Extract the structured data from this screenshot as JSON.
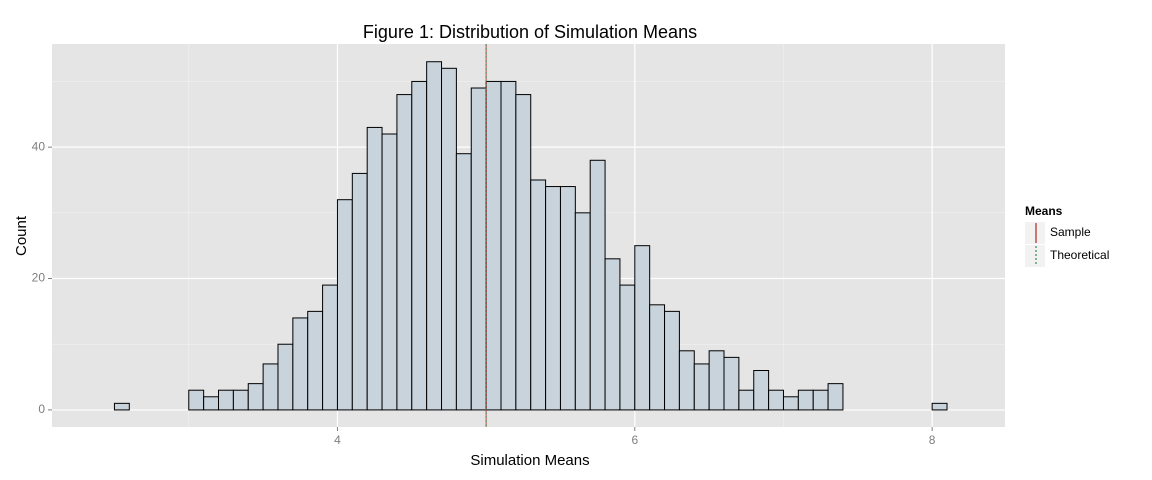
{
  "chart_data": {
    "type": "histogram",
    "title": "Figure 1: Distribution of Simulation Means",
    "x_label": "Simulation Means",
    "y_label": "Count",
    "bins": [
      2.4,
      2.5,
      2.6,
      2.7,
      2.8,
      2.9,
      3.0,
      3.1,
      3.2,
      3.3,
      3.4,
      3.5,
      3.6,
      3.7,
      3.8,
      3.9,
      4.0,
      4.1,
      4.2,
      4.3,
      4.4,
      4.5,
      4.6,
      4.7,
      4.8,
      4.9,
      5.0,
      5.1,
      5.2,
      5.3,
      5.4,
      5.5,
      5.6,
      5.7,
      5.8,
      5.9,
      6.0,
      6.1,
      6.2,
      6.3,
      6.4,
      6.5,
      6.6,
      6.7,
      6.8,
      6.9,
      7.0,
      7.1,
      7.2,
      7.3,
      7.4,
      7.5,
      7.6,
      7.7,
      7.8,
      7.9,
      8.0,
      8.1,
      8.2
    ],
    "values": [
      0,
      1,
      0,
      0,
      0,
      0,
      3,
      2,
      3,
      3,
      4,
      7,
      10,
      14,
      15,
      19,
      32,
      36,
      43,
      42,
      48,
      50,
      53,
      52,
      39,
      49,
      50,
      50,
      48,
      35,
      34,
      34,
      30,
      38,
      23,
      19,
      25,
      16,
      15,
      9,
      7,
      9,
      8,
      3,
      6,
      3,
      2,
      3,
      3,
      4,
      0,
      0,
      0,
      0,
      0,
      0,
      1,
      0
    ],
    "color": "#c8d3dc",
    "edge_color": "#000000",
    "xlim": [
      2.08,
      8.49
    ],
    "ylim": [
      -2.6,
      55.7
    ],
    "xticks": [
      4,
      6,
      8
    ],
    "yticks": [
      0,
      20,
      40
    ],
    "xminor": [
      3,
      5,
      7
    ],
    "yminor": [
      10,
      30,
      50
    ],
    "grid": true,
    "legend_title": "Means",
    "legend_position": "right",
    "vlines": [
      {
        "name": "Sample",
        "value": 5.0,
        "color": "#b22222",
        "dashed": false
      },
      {
        "name": "Theoretical",
        "value": 5,
        "color": "#2e8b57",
        "dashed": true
      }
    ]
  }
}
